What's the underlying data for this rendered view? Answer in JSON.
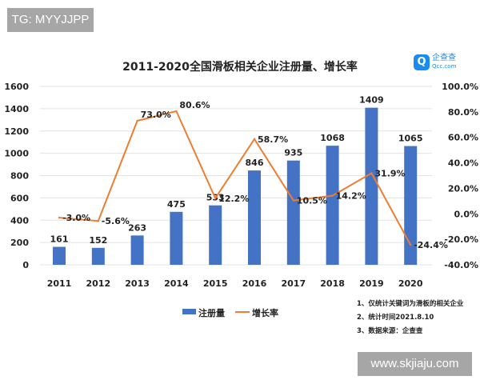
{
  "watermarks": {
    "top": "TG: MYYJJPP",
    "bottom": "www.skjiaju.com"
  },
  "logo": {
    "name": "企查查",
    "domain": "Qcc.com"
  },
  "notes": [
    "1、仅统计关键词为滑板的相关企业",
    "2、统计时间2021.8.10",
    "3、数据来源：企查查"
  ],
  "chart_data": {
    "type": "bar+line",
    "title": "2011-2020全国滑板相关企业注册量、增长率",
    "categories": [
      "2011",
      "2012",
      "2013",
      "2014",
      "2015",
      "2016",
      "2017",
      "2018",
      "2019",
      "2020"
    ],
    "series": [
      {
        "name": "注册量",
        "type": "bar",
        "axis": "left",
        "color": "#4472c4",
        "values": [
          161,
          152,
          263,
          475,
          533,
          846,
          935,
          1068,
          1409,
          1065
        ],
        "labels": [
          "161",
          "152",
          "263",
          "475",
          "533",
          "846",
          "935",
          "1068",
          "1409",
          "1065"
        ]
      },
      {
        "name": "增长率",
        "type": "line",
        "axis": "right",
        "color": "#ed7d31",
        "values": [
          -3.0,
          -5.6,
          73.0,
          80.6,
          12.2,
          58.7,
          10.5,
          14.2,
          31.9,
          -24.4
        ],
        "labels": [
          "-3.0%",
          "-5.6%",
          "73.0%",
          "80.6%",
          "12.2%",
          "58.7%",
          "10.5%",
          "14.2%",
          "31.9%",
          "-24.4%"
        ]
      }
    ],
    "y_left": {
      "range": [
        0,
        1600
      ],
      "ticks": [
        "0",
        "200",
        "400",
        "600",
        "800",
        "1000",
        "1200",
        "1400",
        "1600"
      ]
    },
    "y_right": {
      "range": [
        -40,
        100
      ],
      "ticks": [
        "-40.0%",
        "-20.0%",
        "0.0%",
        "20.0%",
        "40.0%",
        "60.0%",
        "80.0%",
        "100.0%"
      ]
    },
    "legend": "bottom",
    "grid": true
  }
}
